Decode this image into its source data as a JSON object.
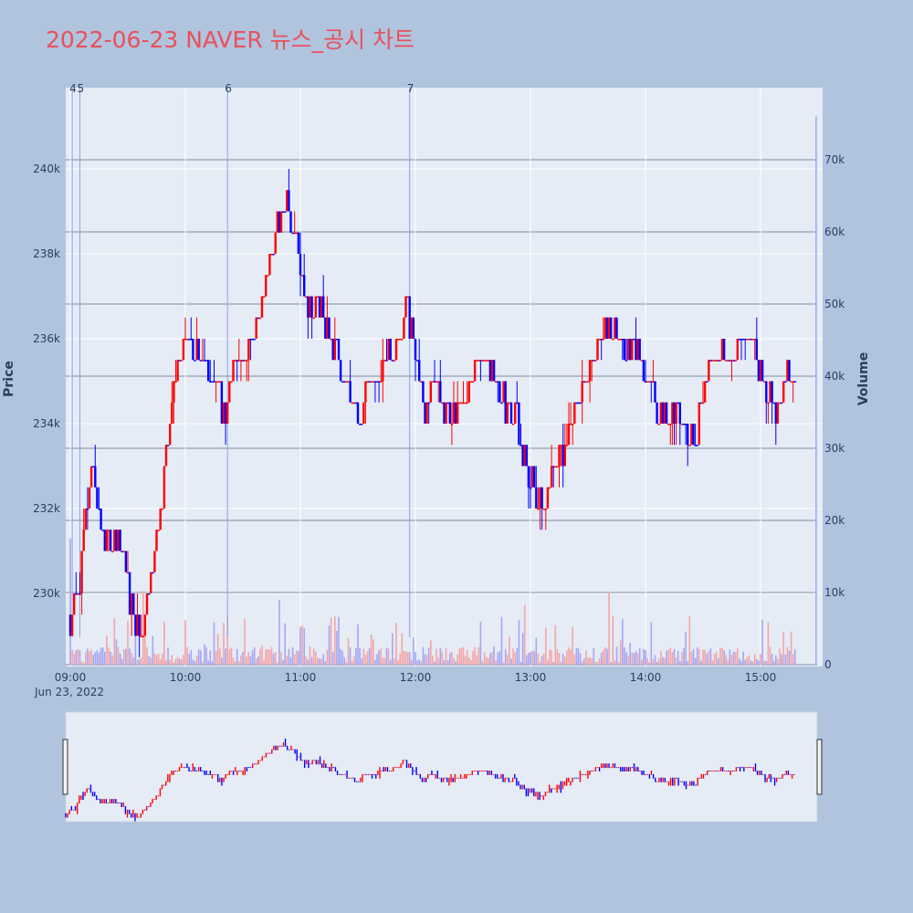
{
  "page": {
    "title": "2022-06-23 NAVER 뉴스_공시 차트"
  },
  "chart_data": {
    "type": "candlestick",
    "title": "2022-06-23 NAVER 뉴스_공시 차트",
    "xlabel": "",
    "ylabel": "Price",
    "y2label": "Volume",
    "x_ticks": [
      "09:00",
      "10:00",
      "11:00",
      "12:00",
      "13:00",
      "14:00",
      "15:00"
    ],
    "x_date_label": "Jun 23, 2022",
    "x_range": [
      "09:00",
      "15:30"
    ],
    "y_ticks": [
      "230k",
      "232k",
      "234k",
      "236k",
      "238k",
      "240k"
    ],
    "y_tick_values": [
      230000,
      232000,
      234000,
      236000,
      238000,
      240000
    ],
    "ylim": [
      228300,
      241800
    ],
    "y2_ticks": [
      "0",
      "10k",
      "20k",
      "30k",
      "40k",
      "50k",
      "60k",
      "70k"
    ],
    "y2_tick_values": [
      0,
      10000,
      20000,
      30000,
      40000,
      50000,
      60000,
      70000
    ],
    "y2lim": [
      0,
      78000
    ],
    "increasing_color": "#ff0000",
    "decreasing_color": "#0000ff",
    "volume_up_color": "#f4a6a6",
    "volume_down_color": "#a6a6f4",
    "plot_bg": "#e5ecf6",
    "grid": true,
    "rangeslider": true,
    "news_markers": [
      {
        "label": "4",
        "time": "09:01"
      },
      {
        "label": "5",
        "time": "09:05"
      },
      {
        "label": "6",
        "time": "10:22"
      },
      {
        "label": "7",
        "time": "11:57"
      }
    ],
    "price_path": [
      [
        "09:00",
        229500
      ],
      [
        "09:05",
        230300
      ],
      [
        "09:08",
        231800
      ],
      [
        "09:12",
        233000
      ],
      [
        "09:17",
        231400
      ],
      [
        "09:25",
        231300
      ],
      [
        "09:32",
        229800
      ],
      [
        "09:36",
        229000
      ],
      [
        "09:42",
        230500
      ],
      [
        "09:47",
        232000
      ],
      [
        "09:52",
        234200
      ],
      [
        "09:56",
        235300
      ],
      [
        "10:00",
        236200
      ],
      [
        "10:07",
        235700
      ],
      [
        "10:15",
        235000
      ],
      [
        "10:20",
        234200
      ],
      [
        "10:25",
        235500
      ],
      [
        "10:32",
        235600
      ],
      [
        "10:40",
        236800
      ],
      [
        "10:48",
        238800
      ],
      [
        "10:53",
        239200
      ],
      [
        "11:00",
        237700
      ],
      [
        "11:05",
        236500
      ],
      [
        "11:10",
        236800
      ],
      [
        "11:15",
        235900
      ],
      [
        "11:20",
        235500
      ],
      [
        "11:25",
        234700
      ],
      [
        "11:30",
        234100
      ],
      [
        "11:36",
        235000
      ],
      [
        "11:42",
        235300
      ],
      [
        "11:50",
        235800
      ],
      [
        "11:56",
        236800
      ],
      [
        "12:00",
        235300
      ],
      [
        "12:05",
        234500
      ],
      [
        "12:10",
        234700
      ],
      [
        "12:20",
        234300
      ],
      [
        "12:28",
        234800
      ],
      [
        "12:35",
        235800
      ],
      [
        "12:40",
        235200
      ],
      [
        "12:47",
        234500
      ],
      [
        "12:52",
        234200
      ],
      [
        "12:57",
        233200
      ],
      [
        "13:02",
        232400
      ],
      [
        "13:07",
        232100
      ],
      [
        "13:12",
        233100
      ],
      [
        "13:18",
        233600
      ],
      [
        "13:24",
        234400
      ],
      [
        "13:30",
        235400
      ],
      [
        "13:37",
        235800
      ],
      [
        "13:42",
        236400
      ],
      [
        "13:48",
        235800
      ],
      [
        "13:55",
        235600
      ],
      [
        "14:00",
        235200
      ],
      [
        "14:08",
        234100
      ],
      [
        "14:15",
        234300
      ],
      [
        "14:22",
        233500
      ],
      [
        "14:27",
        233800
      ],
      [
        "14:32",
        235200
      ],
      [
        "14:38",
        235700
      ],
      [
        "14:44",
        235500
      ],
      [
        "14:50",
        236200
      ],
      [
        "14:56",
        235900
      ],
      [
        "15:02",
        234800
      ],
      [
        "15:08",
        234400
      ],
      [
        "15:14",
        235300
      ],
      [
        "15:18",
        234800
      ]
    ],
    "volume_spikes": [
      {
        "time": "09:00",
        "value": 17500
      },
      {
        "time": "09:38",
        "value": 10200
      },
      {
        "time": "10:49",
        "value": 9000
      },
      {
        "time": "12:57",
        "value": 8300
      },
      {
        "time": "13:41",
        "value": 10100
      },
      {
        "time": "15:29",
        "value": 76000
      }
    ]
  }
}
